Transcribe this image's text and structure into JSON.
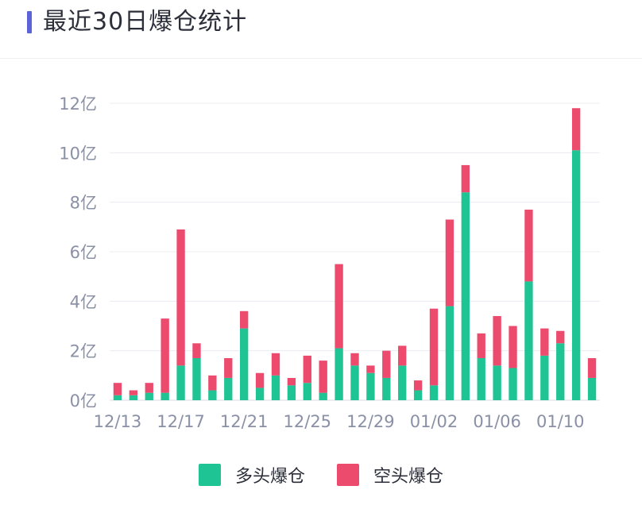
{
  "header": {
    "title": "最近30日爆仓统计"
  },
  "colors": {
    "long": "#1fc494",
    "short": "#ec4b6e",
    "accent": "#5a63d8",
    "grid": "#e9ecf2",
    "axis_text": "#8a90a6"
  },
  "chart_data": {
    "type": "bar",
    "stacked": true,
    "title": "",
    "xlabel": "",
    "ylabel": "",
    "ylim": [
      0,
      12
    ],
    "yticks": [
      0,
      2,
      4,
      6,
      8,
      10,
      12
    ],
    "ytick_labels": [
      "0亿",
      "2亿",
      "4亿",
      "6亿",
      "8亿",
      "10亿",
      "12亿"
    ],
    "categories": [
      "12/13",
      "12/14",
      "12/15",
      "12/16",
      "12/17",
      "12/18",
      "12/19",
      "12/20",
      "12/21",
      "12/22",
      "12/23",
      "12/24",
      "12/25",
      "12/26",
      "12/27",
      "12/28",
      "12/29",
      "12/30",
      "12/31",
      "01/01",
      "01/02",
      "01/03",
      "01/04",
      "01/05",
      "01/06",
      "01/07",
      "01/08",
      "01/09",
      "01/10",
      "01/11",
      "01/12"
    ],
    "xtick_labels": [
      "12/13",
      "12/17",
      "12/21",
      "12/25",
      "12/29",
      "01/02",
      "01/06",
      "01/10"
    ],
    "xtick_indices": [
      0,
      4,
      8,
      12,
      16,
      20,
      24,
      28
    ],
    "series": [
      {
        "name": "多头爆仓",
        "color": "#1fc494",
        "values": [
          0.2,
          0.2,
          0.3,
          0.3,
          1.4,
          1.7,
          0.4,
          0.9,
          2.9,
          0.5,
          1.0,
          0.6,
          0.7,
          0.3,
          2.1,
          1.4,
          1.1,
          0.9,
          1.4,
          0.4,
          0.6,
          3.8,
          8.4,
          1.7,
          1.4,
          1.3,
          4.8,
          1.8,
          2.3,
          10.1,
          0.9
        ]
      },
      {
        "name": "空头爆仓",
        "color": "#ec4b6e",
        "values": [
          0.5,
          0.2,
          0.4,
          3.0,
          5.5,
          0.6,
          0.6,
          0.8,
          0.7,
          0.6,
          0.9,
          0.3,
          1.1,
          1.3,
          3.4,
          0.5,
          0.3,
          1.1,
          0.8,
          0.4,
          3.1,
          3.5,
          1.1,
          1.0,
          2.0,
          1.7,
          2.9,
          1.1,
          0.5,
          1.7,
          0.8
        ]
      }
    ],
    "legend": {
      "position": "bottom"
    }
  },
  "legend": {
    "long_label": "多头爆仓",
    "short_label": "空头爆仓"
  }
}
